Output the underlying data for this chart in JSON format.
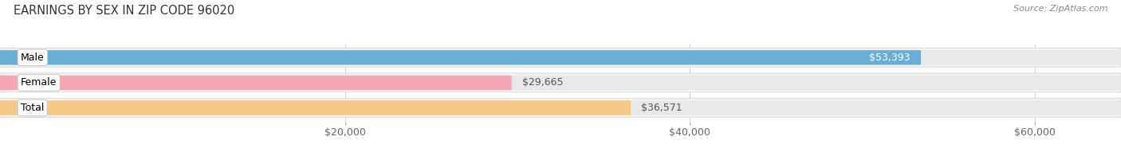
{
  "title": "EARNINGS BY SEX IN ZIP CODE 96020",
  "source": "Source: ZipAtlas.com",
  "categories": [
    "Male",
    "Female",
    "Total"
  ],
  "values": [
    53393,
    29665,
    36571
  ],
  "bar_colors": [
    "#6aaed6",
    "#f4a8b8",
    "#f5c98a"
  ],
  "value_labels": [
    "$53,393",
    "$29,665",
    "$36,571"
  ],
  "value_label_colors": [
    "white",
    "#555555",
    "#555555"
  ],
  "xmin": 0,
  "xmax": 65000,
  "xticks": [
    20000,
    40000,
    60000
  ],
  "xtick_labels": [
    "$20,000",
    "$40,000",
    "$60,000"
  ],
  "background_color": "#ffffff",
  "bar_bg_color": "#e8e8e8",
  "row_bg_color": "#f2f2f2",
  "title_fontsize": 10.5,
  "cat_fontsize": 9,
  "value_fontsize": 9,
  "source_fontsize": 8,
  "bar_height": 0.58,
  "bar_gap": 0.18
}
